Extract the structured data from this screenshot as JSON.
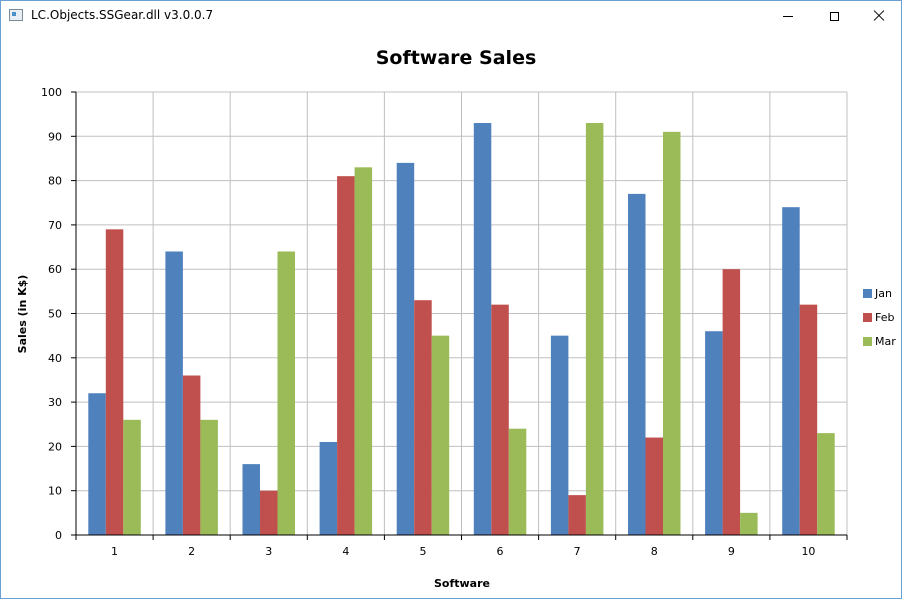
{
  "window": {
    "title": "LC.Objects.SSGear.dll v3.0.0.7"
  },
  "colors": {
    "Jan": "#4f81bd",
    "Feb": "#c0504d",
    "Mar": "#9bbb59",
    "grid": "#c0c0c0"
  },
  "chart_data": {
    "type": "bar",
    "title": "Software Sales",
    "xlabel": "Software",
    "ylabel": "Sales (in K$)",
    "categories": [
      "1",
      "2",
      "3",
      "4",
      "5",
      "6",
      "7",
      "8",
      "9",
      "10"
    ],
    "series": [
      {
        "name": "Jan",
        "values": [
          32,
          64,
          16,
          21,
          84,
          93,
          45,
          77,
          46,
          74
        ]
      },
      {
        "name": "Feb",
        "values": [
          69,
          36,
          10,
          81,
          53,
          52,
          9,
          22,
          60,
          52
        ]
      },
      {
        "name": "Mar",
        "values": [
          26,
          26,
          64,
          83,
          45,
          24,
          93,
          91,
          5,
          23
        ]
      }
    ],
    "ylim": [
      0,
      100
    ],
    "yticks": [
      0,
      10,
      20,
      30,
      40,
      50,
      60,
      70,
      80,
      90,
      100
    ],
    "grid": true,
    "legend": "right"
  }
}
